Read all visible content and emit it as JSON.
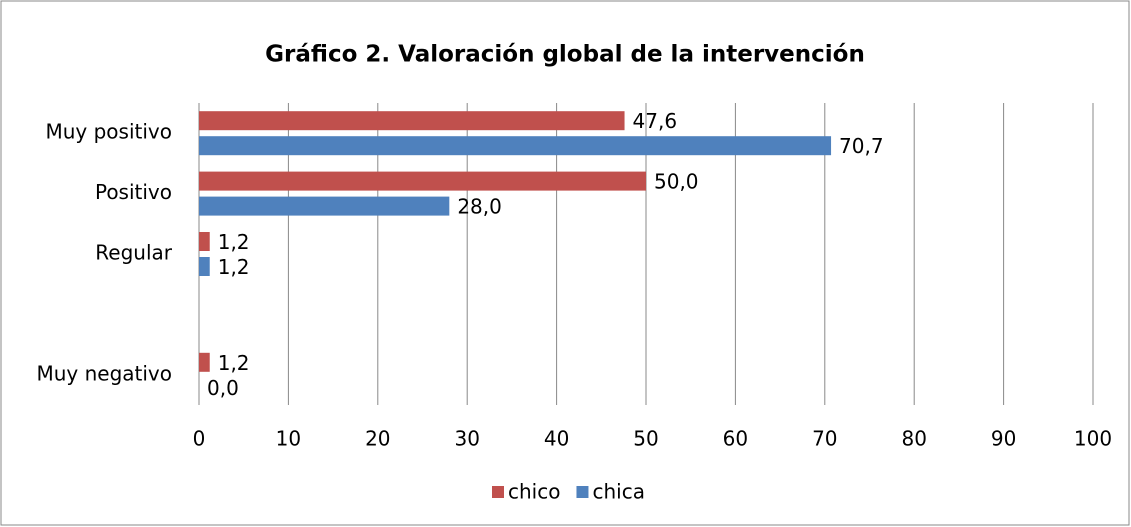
{
  "chart_data": {
    "type": "bar",
    "orientation": "horizontal",
    "title": "Gráfico 2. Valoración global de la intervención",
    "categories": [
      "Muy positivo",
      "Positivo",
      "Regular",
      null,
      "Muy negativo"
    ],
    "series": [
      {
        "name": "chico",
        "color": "#c0504d",
        "values": [
          47.6,
          50.0,
          1.2,
          null,
          1.2
        ],
        "value_labels": [
          "47,6",
          "50,0",
          "1,2",
          null,
          "1,2"
        ]
      },
      {
        "name": "chica",
        "color": "#4f81bd",
        "values": [
          70.7,
          28.0,
          1.2,
          null,
          0.0
        ],
        "value_labels": [
          "70,7",
          "28,0",
          "1,2",
          null,
          "0,0"
        ]
      }
    ],
    "xlim": [
      0,
      100
    ],
    "xticks": [
      0,
      10,
      20,
      30,
      40,
      50,
      60,
      70,
      80,
      90,
      100
    ],
    "grid": true,
    "legend": "bottom"
  }
}
